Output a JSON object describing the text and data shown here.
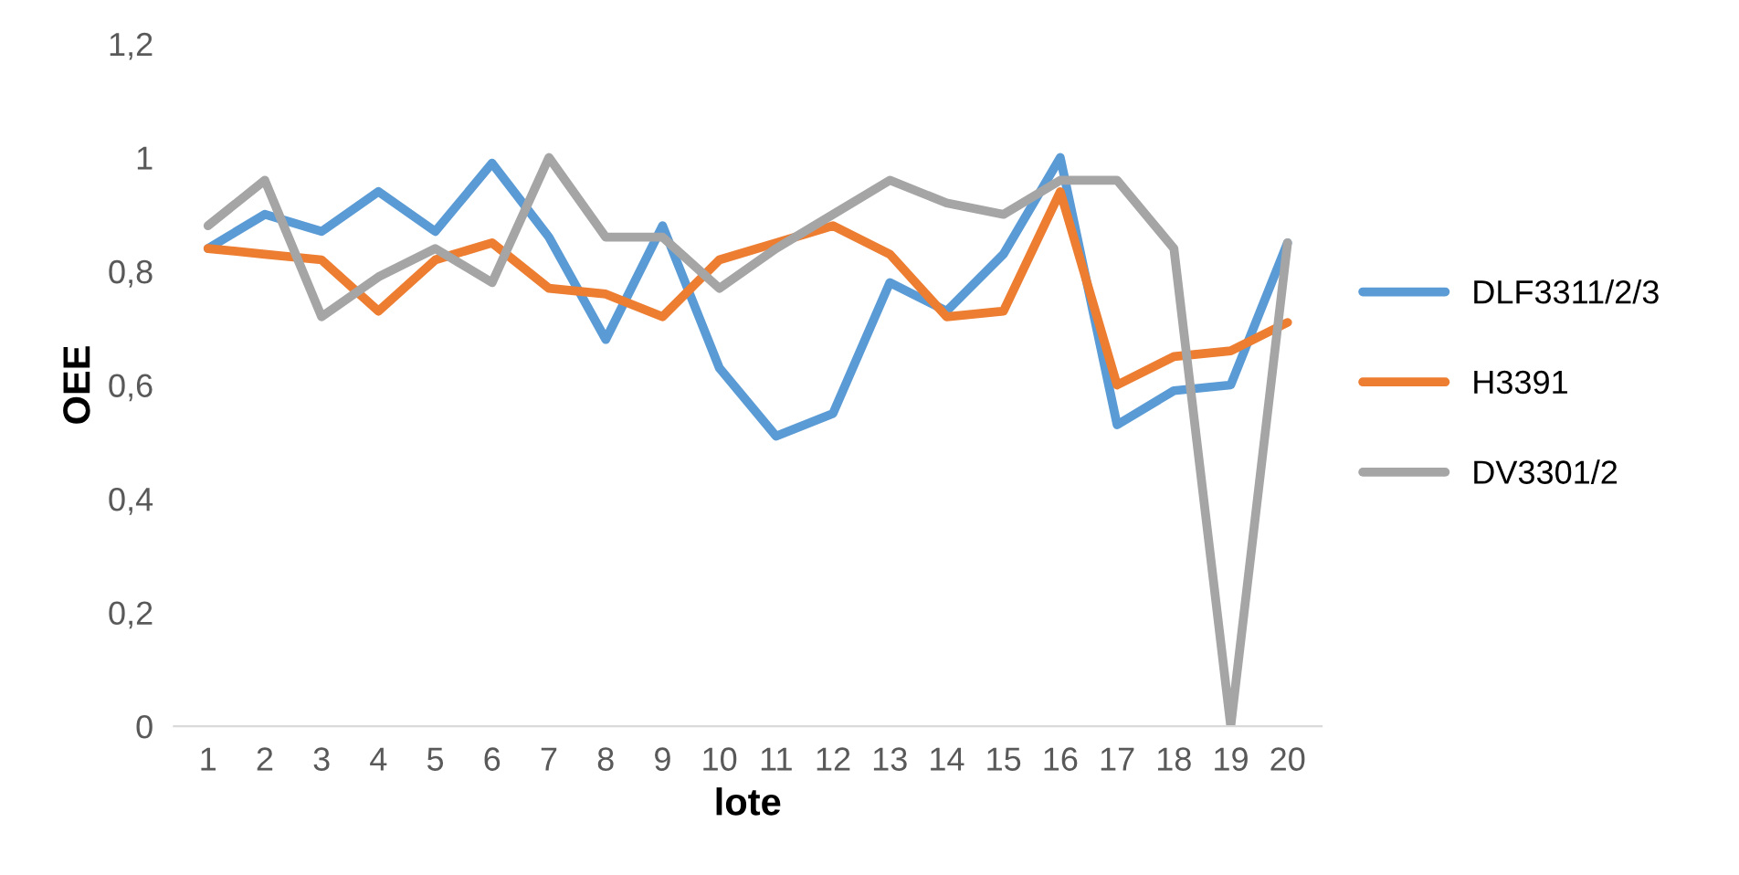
{
  "chart_data": {
    "type": "line",
    "xlabel": "lote",
    "ylabel": "OEE",
    "categories": [
      "1",
      "2",
      "3",
      "4",
      "5",
      "6",
      "7",
      "8",
      "9",
      "10",
      "11",
      "12",
      "13",
      "14",
      "15",
      "16",
      "17",
      "18",
      "19",
      "20"
    ],
    "series": [
      {
        "name": "DLF3311/2/3",
        "color": "#5b9bd5",
        "values": [
          0.84,
          0.9,
          0.87,
          0.94,
          0.87,
          0.99,
          0.86,
          0.68,
          0.88,
          0.63,
          0.51,
          0.55,
          0.78,
          0.73,
          0.83,
          1.0,
          0.53,
          0.59,
          0.6,
          0.85
        ]
      },
      {
        "name": "H3391",
        "color": "#ed7d31",
        "values": [
          0.84,
          0.83,
          0.82,
          0.73,
          0.82,
          0.85,
          0.77,
          0.76,
          0.72,
          0.82,
          0.85,
          0.88,
          0.83,
          0.72,
          0.73,
          0.94,
          0.6,
          0.65,
          0.66,
          0.71
        ]
      },
      {
        "name": "DV3301/2",
        "color": "#a5a5a5",
        "values": [
          0.88,
          0.96,
          0.72,
          0.79,
          0.84,
          0.78,
          1.0,
          0.86,
          0.86,
          0.77,
          0.84,
          0.9,
          0.96,
          0.92,
          0.9,
          0.96,
          0.96,
          0.84,
          0,
          0.85
        ]
      }
    ],
    "ylim": [
      0,
      1.2
    ],
    "yticks": [
      0,
      {
        "value": 0.2,
        "label": "0,2"
      },
      {
        "value": 0.4,
        "label": "0,4"
      },
      {
        "value": 0.6,
        "label": "0,6"
      },
      {
        "value": 0.8,
        "label": "0,8"
      },
      1,
      {
        "value": 1.2,
        "label": "1,2"
      }
    ],
    "grid": false,
    "legend": "right",
    "marker": "none",
    "line_style": "solid"
  }
}
